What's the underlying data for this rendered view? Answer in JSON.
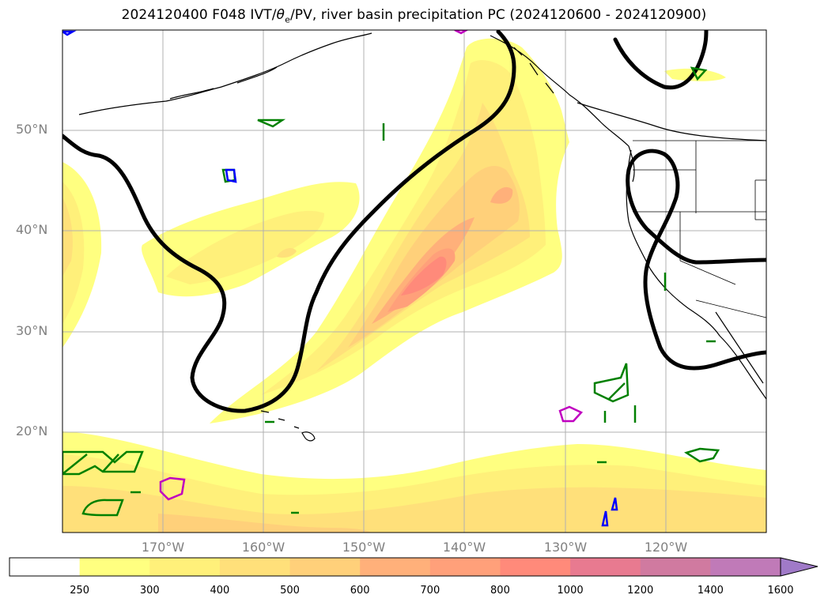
{
  "title_prefix": "2024120400 F048 IVT/",
  "title_theta": "θ",
  "title_theta_sub": "e",
  "title_suffix": "/PV, river basin precipitation PC (2024120600 - 2024120900)",
  "lat_labels": [
    "50°N",
    "40°N",
    "30°N",
    "20°N"
  ],
  "lon_labels": [
    "170°W",
    "160°W",
    "150°W",
    "140°W",
    "130°W",
    "120°W"
  ],
  "colorbar": {
    "levels": [
      "250",
      "300",
      "400",
      "500",
      "600",
      "700",
      "800",
      "1000",
      "1200",
      "1400",
      "1600"
    ],
    "colors": [
      "#ffffff",
      "#ffff80",
      "#fff07a",
      "#ffe07a",
      "#ffd07a",
      "#ffb07a",
      "#ffa07a",
      "#ff8a7a",
      "#e87a90",
      "#d07aa0",
      "#c07ab8",
      "#a07ac8"
    ],
    "extend": "max"
  },
  "map": {
    "projection": "cylindrical",
    "extent_lon": [
      -180,
      -110
    ],
    "extent_lat": [
      10,
      60
    ],
    "layers": [
      "IVT shading",
      "theta_e contour (black)",
      "PV contours (green/blue/magenta)",
      "coastlines",
      "state borders"
    ],
    "gridlines": true
  }
}
